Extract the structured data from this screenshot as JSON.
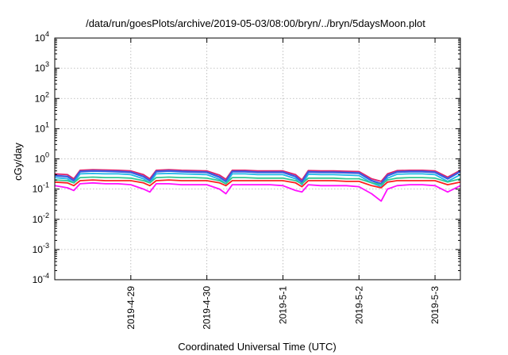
{
  "chart_data": {
    "type": "line",
    "title": "/data/run/goesPlots/archive/2019-05-03/08:00/bryn/../bryn/5daysMoon.plot",
    "xlabel": "Coordinated Universal Time (UTC)",
    "ylabel": "cGy/day",
    "y_scale": "log",
    "ylim": [
      0.0001,
      10000
    ],
    "y_ticks": [
      {
        "base": "10",
        "exp": "-4",
        "value": 0.0001
      },
      {
        "base": "10",
        "exp": "-3",
        "value": 0.001
      },
      {
        "base": "10",
        "exp": "-2",
        "value": 0.01
      },
      {
        "base": "10",
        "exp": "-1",
        "value": 0.1
      },
      {
        "base": "10",
        "exp": "0",
        "value": 1
      },
      {
        "base": "10",
        "exp": "1",
        "value": 10
      },
      {
        "base": "10",
        "exp": "2",
        "value": 100
      },
      {
        "base": "10",
        "exp": "3",
        "value": 1000
      },
      {
        "base": "10",
        "exp": "4",
        "value": 10000
      }
    ],
    "xlim": [
      "2019-04-28 00:00",
      "2019-05-03 08:00"
    ],
    "x_ticks": [
      "2019-4-29",
      "2019-4-30",
      "2019-5-1",
      "2019-5-2",
      "2019-5-3"
    ],
    "grid": true,
    "legend": "none",
    "series_x": [
      "2019-04-28 00:00",
      "2019-04-28 04:00",
      "2019-04-28 06:00",
      "2019-04-28 08:00",
      "2019-04-28 12:00",
      "2019-04-28 16:00",
      "2019-04-28 20:00",
      "2019-04-29 00:00",
      "2019-04-29 04:00",
      "2019-04-29 06:00",
      "2019-04-29 08:00",
      "2019-04-29 12:00",
      "2019-04-29 16:00",
      "2019-04-29 20:00",
      "2019-04-30 00:00",
      "2019-04-30 04:00",
      "2019-04-30 06:00",
      "2019-04-30 08:00",
      "2019-04-30 12:00",
      "2019-04-30 16:00",
      "2019-04-30 20:00",
      "2019-05-01 00:00",
      "2019-05-01 04:00",
      "2019-05-01 06:00",
      "2019-05-01 08:00",
      "2019-05-01 12:00",
      "2019-05-01 16:00",
      "2019-05-01 20:00",
      "2019-05-02 00:00",
      "2019-05-02 04:00",
      "2019-05-02 07:00",
      "2019-05-02 09:00",
      "2019-05-02 12:00",
      "2019-05-02 16:00",
      "2019-05-02 20:00",
      "2019-05-03 00:00",
      "2019-05-03 04:00",
      "2019-05-03 08:00"
    ],
    "series": [
      {
        "color": "#e0206a",
        "values": [
          0.32,
          0.3,
          0.22,
          0.42,
          0.44,
          0.43,
          0.42,
          0.4,
          0.3,
          0.22,
          0.42,
          0.44,
          0.42,
          0.41,
          0.4,
          0.29,
          0.21,
          0.42,
          0.42,
          0.4,
          0.4,
          0.4,
          0.3,
          0.2,
          0.41,
          0.4,
          0.4,
          0.39,
          0.38,
          0.22,
          0.18,
          0.32,
          0.41,
          0.42,
          0.42,
          0.4,
          0.25,
          0.42
        ]
      },
      {
        "color": "#3a5de0",
        "values": [
          0.28,
          0.26,
          0.19,
          0.38,
          0.4,
          0.39,
          0.38,
          0.36,
          0.26,
          0.19,
          0.38,
          0.4,
          0.38,
          0.37,
          0.36,
          0.25,
          0.18,
          0.38,
          0.38,
          0.36,
          0.36,
          0.36,
          0.26,
          0.17,
          0.37,
          0.36,
          0.36,
          0.35,
          0.34,
          0.19,
          0.15,
          0.28,
          0.37,
          0.38,
          0.38,
          0.36,
          0.22,
          0.38
        ]
      },
      {
        "color": "#20b8e8",
        "values": [
          0.24,
          0.22,
          0.16,
          0.32,
          0.33,
          0.32,
          0.32,
          0.3,
          0.22,
          0.16,
          0.32,
          0.33,
          0.32,
          0.31,
          0.3,
          0.21,
          0.15,
          0.32,
          0.32,
          0.3,
          0.3,
          0.3,
          0.22,
          0.14,
          0.31,
          0.3,
          0.3,
          0.29,
          0.28,
          0.16,
          0.12,
          0.23,
          0.31,
          0.32,
          0.32,
          0.3,
          0.18,
          0.3
        ]
      },
      {
        "color": "#30c890",
        "values": [
          0.2,
          0.19,
          0.16,
          0.24,
          0.25,
          0.24,
          0.24,
          0.23,
          0.19,
          0.16,
          0.24,
          0.25,
          0.24,
          0.24,
          0.23,
          0.19,
          0.15,
          0.24,
          0.24,
          0.23,
          0.23,
          0.23,
          0.19,
          0.15,
          0.23,
          0.23,
          0.23,
          0.22,
          0.22,
          0.16,
          0.14,
          0.2,
          0.23,
          0.24,
          0.24,
          0.23,
          0.17,
          0.22
        ]
      },
      {
        "color": "#ff2020",
        "values": [
          0.17,
          0.16,
          0.13,
          0.19,
          0.2,
          0.19,
          0.19,
          0.19,
          0.16,
          0.13,
          0.19,
          0.2,
          0.19,
          0.19,
          0.19,
          0.16,
          0.13,
          0.19,
          0.19,
          0.19,
          0.19,
          0.19,
          0.16,
          0.12,
          0.19,
          0.19,
          0.19,
          0.18,
          0.18,
          0.13,
          0.11,
          0.17,
          0.19,
          0.19,
          0.19,
          0.19,
          0.14,
          0.17
        ]
      },
      {
        "color": "#ff10ff",
        "values": [
          0.13,
          0.11,
          0.09,
          0.15,
          0.16,
          0.15,
          0.15,
          0.14,
          0.1,
          0.08,
          0.15,
          0.15,
          0.14,
          0.14,
          0.14,
          0.1,
          0.07,
          0.14,
          0.14,
          0.14,
          0.14,
          0.13,
          0.09,
          0.08,
          0.14,
          0.13,
          0.13,
          0.13,
          0.12,
          0.07,
          0.04,
          0.1,
          0.13,
          0.14,
          0.14,
          0.13,
          0.08,
          0.13
        ]
      }
    ]
  }
}
